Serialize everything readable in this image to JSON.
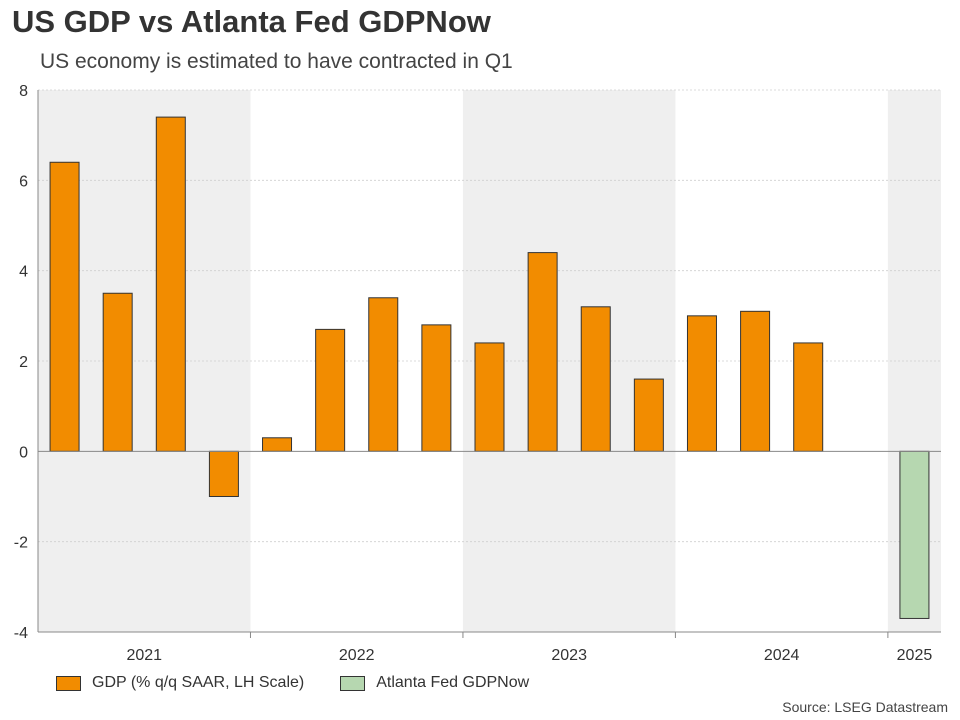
{
  "title": "US GDP vs Atlanta Fed GDPNow",
  "subtitle": "US economy is estimated to have contracted in Q1",
  "source": "Source: LSEG Datastream",
  "chart_data": {
    "type": "bar",
    "categories": [
      "2021 Q1",
      "2021 Q2",
      "2021 Q3",
      "2021 Q4",
      "2022 Q1",
      "2022 Q2",
      "2022 Q3",
      "2022 Q4",
      "2023 Q1",
      "2023 Q2",
      "2023 Q3",
      "2023 Q4",
      "2024 Q1",
      "2024 Q2",
      "2024 Q3",
      "2024 Q4",
      "2025 Q1"
    ],
    "series": [
      {
        "name": "GDP (% q/q SAAR, LH Scale)",
        "color": "#f28c00",
        "values": [
          6.4,
          3.5,
          7.4,
          -1.0,
          0.3,
          2.7,
          3.4,
          2.8,
          2.4,
          4.4,
          3.2,
          1.6,
          3.0,
          3.1,
          2.4,
          null,
          null
        ]
      },
      {
        "name": "Atlanta Fed GDPNow",
        "color": "#b6d7b0",
        "values": [
          null,
          null,
          null,
          null,
          null,
          null,
          null,
          null,
          null,
          null,
          null,
          null,
          null,
          null,
          null,
          null,
          -3.7
        ]
      }
    ],
    "year_labels": [
      "2021",
      "2022",
      "2023",
      "2024",
      "2025"
    ],
    "y_ticks": [
      8,
      6,
      4,
      2,
      0,
      -2,
      -4
    ],
    "ylim": [
      -4,
      8
    ],
    "grid": true,
    "legend_position": "bottom-left",
    "band_color": "#efefef"
  }
}
